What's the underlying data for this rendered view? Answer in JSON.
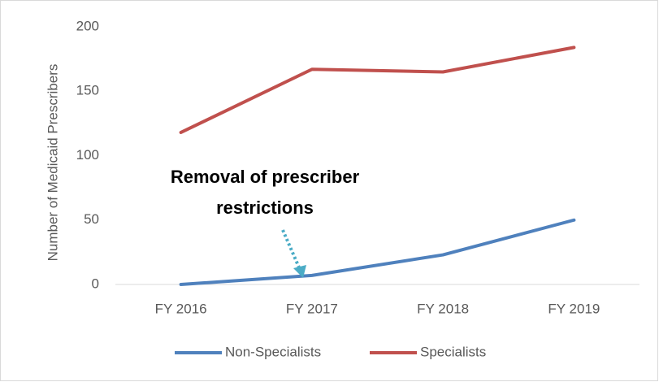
{
  "chart_data": {
    "type": "line",
    "ylabel": "Number of Medicaid Prescribers",
    "categories": [
      "FY 2016",
      "FY 2017",
      "FY 2018",
      "FY 2019"
    ],
    "series": [
      {
        "name": "Non-Specialists",
        "color": "#4f81bd",
        "values": [
          0,
          7,
          23,
          50
        ]
      },
      {
        "name": "Specialists",
        "color": "#c0504d",
        "values": [
          118,
          167,
          165,
          184
        ]
      }
    ],
    "ylim": [
      0,
      200
    ],
    "yticks": [
      0,
      50,
      100,
      150,
      200
    ],
    "grid": false,
    "legend": "bottom",
    "annotation": {
      "text": [
        "Removal of prescriber",
        "restrictions"
      ],
      "color": "#4bacc6"
    }
  }
}
